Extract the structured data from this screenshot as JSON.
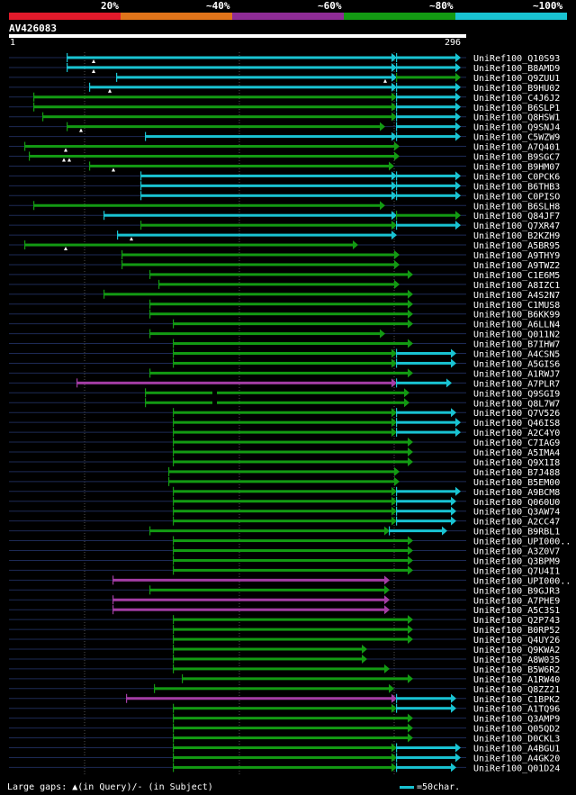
{
  "legend": {
    "colors": [
      "#e11a2b",
      "#e0741a",
      "#8e2c96",
      "#139a13",
      "#19c3d2"
    ],
    "labels": [
      "20%",
      "~40%",
      "~60%",
      "~80%",
      "~100%"
    ]
  },
  "query": {
    "id": "AV426083",
    "start": "1",
    "end": "296"
  },
  "footer": {
    "gaps_text": "Large gaps: ▲(in Query)/- (in Subject)",
    "scale_text": "=50char."
  },
  "hits": [
    {
      "name": "UniRef100_Q10S93",
      "segs": [
        [
          75,
          441,
          "c"
        ],
        [
          441,
          512,
          "c"
        ]
      ],
      "tri": [
        [
          104,
          "q"
        ]
      ]
    },
    {
      "name": "UniRef100_B8AMD9",
      "segs": [
        [
          75,
          441,
          "c"
        ],
        [
          441,
          512,
          "c"
        ]
      ],
      "tri": [
        [
          104,
          "q"
        ]
      ]
    },
    {
      "name": "UniRef100_Q9ZUU1",
      "segs": [
        [
          130,
          441,
          "c"
        ],
        [
          441,
          512,
          "g"
        ]
      ],
      "tri": [
        [
          428,
          "q"
        ]
      ]
    },
    {
      "name": "UniRef100_B9HU02",
      "segs": [
        [
          100,
          441,
          "c"
        ],
        [
          441,
          512,
          "c"
        ]
      ],
      "tri": [
        [
          122,
          "q"
        ]
      ]
    },
    {
      "name": "UniRef100_C4J6J2",
      "segs": [
        [
          38,
          441,
          "g"
        ],
        [
          441,
          512,
          "c"
        ]
      ],
      "tri": []
    },
    {
      "name": "UniRef100_B6SLP1",
      "segs": [
        [
          38,
          441,
          "g"
        ],
        [
          441,
          512,
          "c"
        ]
      ],
      "tri": []
    },
    {
      "name": "UniRef100_Q8HSW1",
      "segs": [
        [
          48,
          441,
          "g"
        ],
        [
          441,
          512,
          "c"
        ]
      ],
      "tri": []
    },
    {
      "name": "UniRef100_Q9SNJ4",
      "segs": [
        [
          75,
          428,
          "g"
        ],
        [
          441,
          512,
          "c"
        ]
      ],
      "tri": [
        [
          90,
          "q"
        ]
      ]
    },
    {
      "name": "UniRef100_C5WZW9",
      "segs": [
        [
          162,
          441,
          "c"
        ],
        [
          441,
          512,
          "c"
        ]
      ],
      "tri": []
    },
    {
      "name": "UniRef100_A7Q401",
      "segs": [
        [
          28,
          444,
          "g"
        ]
      ],
      "tri": [
        [
          73,
          "q"
        ]
      ]
    },
    {
      "name": "UniRef100_B9SGC7",
      "segs": [
        [
          33,
          444,
          "g"
        ]
      ],
      "tri": [
        [
          71,
          "q"
        ],
        [
          77,
          "q"
        ]
      ]
    },
    {
      "name": "UniRef100_B9HM07",
      "segs": [
        [
          100,
          438,
          "g"
        ]
      ],
      "tri": [
        [
          126,
          "q"
        ]
      ]
    },
    {
      "name": "UniRef100_C0PCK6",
      "segs": [
        [
          157,
          441,
          "c"
        ],
        [
          441,
          512,
          "c"
        ]
      ],
      "tri": []
    },
    {
      "name": "UniRef100_B6THB3",
      "segs": [
        [
          157,
          441,
          "c"
        ],
        [
          441,
          512,
          "c"
        ]
      ],
      "tri": []
    },
    {
      "name": "UniRef100_C0PISO",
      "segs": [
        [
          157,
          441,
          "c"
        ],
        [
          441,
          512,
          "c"
        ]
      ],
      "tri": []
    },
    {
      "name": "UniRef100_B6SLH8",
      "segs": [
        [
          38,
          428,
          "g"
        ]
      ],
      "tri": []
    },
    {
      "name": "UniRef100_Q84JF7",
      "segs": [
        [
          116,
          441,
          "c"
        ],
        [
          441,
          512,
          "g"
        ]
      ],
      "tri": []
    },
    {
      "name": "UniRef100_Q7XR47",
      "segs": [
        [
          157,
          441,
          "g"
        ],
        [
          441,
          512,
          "c"
        ]
      ],
      "tri": []
    },
    {
      "name": "UniRef100_B2KZH9",
      "segs": [
        [
          131,
          441,
          "c"
        ]
      ],
      "tri": [
        [
          146,
          "q"
        ]
      ]
    },
    {
      "name": "UniRef100_A5BR95",
      "segs": [
        [
          28,
          398,
          "g"
        ]
      ],
      "tri": [
        [
          73,
          "q"
        ]
      ]
    },
    {
      "name": "UniRef100_A9THY9",
      "segs": [
        [
          136,
          444,
          "g"
        ]
      ],
      "tri": []
    },
    {
      "name": "UniRef100_A9TWZ2",
      "segs": [
        [
          136,
          444,
          "g"
        ]
      ],
      "tri": []
    },
    {
      "name": "UniRef100_C1E6M5",
      "segs": [
        [
          167,
          459,
          "g"
        ]
      ],
      "tri": []
    },
    {
      "name": "UniRef100_A8IZC1",
      "segs": [
        [
          177,
          444,
          "g"
        ]
      ],
      "tri": []
    },
    {
      "name": "UniRef100_A4S2N7",
      "segs": [
        [
          116,
          459,
          "g"
        ]
      ],
      "tri": []
    },
    {
      "name": "UniRef100_C1MUS8",
      "segs": [
        [
          167,
          459,
          "g"
        ]
      ],
      "tri": []
    },
    {
      "name": "UniRef100_B6KK99",
      "segs": [
        [
          167,
          459,
          "g"
        ]
      ],
      "tri": []
    },
    {
      "name": "UniRef100_A6LLN4",
      "segs": [
        [
          193,
          459,
          "g"
        ]
      ],
      "tri": []
    },
    {
      "name": "UniRef100_Q011N2",
      "segs": [
        [
          167,
          428,
          "g"
        ]
      ],
      "tri": []
    },
    {
      "name": "UniRef100_B7IHW7",
      "segs": [
        [
          193,
          459,
          "g"
        ]
      ],
      "tri": []
    },
    {
      "name": "UniRef100_A4CSN5",
      "segs": [
        [
          193,
          441,
          "g"
        ],
        [
          441,
          507,
          "c"
        ]
      ],
      "tri": []
    },
    {
      "name": "UniRef100_A5GIS6",
      "segs": [
        [
          193,
          441,
          "g"
        ],
        [
          441,
          507,
          "c"
        ]
      ],
      "tri": []
    },
    {
      "name": "UniRef100_A1RWJ7",
      "segs": [
        [
          167,
          459,
          "g"
        ]
      ],
      "tri": []
    },
    {
      "name": "UniRef100_A7PLR7",
      "segs": [
        [
          86,
          441,
          "p"
        ],
        [
          441,
          502,
          "c"
        ]
      ],
      "tri": []
    },
    {
      "name": "UniRef100_Q9SGI9",
      "segs": [
        [
          162,
          455,
          "g"
        ]
      ],
      "tri": [],
      "gap": [
        236,
        241
      ]
    },
    {
      "name": "UniRef100_Q8L7W7",
      "segs": [
        [
          162,
          455,
          "g"
        ]
      ],
      "tri": [],
      "gap": [
        236,
        241
      ]
    },
    {
      "name": "UniRef100_Q7V526",
      "segs": [
        [
          193,
          441,
          "g"
        ],
        [
          441,
          507,
          "c"
        ]
      ],
      "tri": []
    },
    {
      "name": "UniRef100_Q46IS8",
      "segs": [
        [
          193,
          441,
          "g"
        ],
        [
          441,
          512,
          "c"
        ]
      ],
      "tri": []
    },
    {
      "name": "UniRef100_A2C4Y0",
      "segs": [
        [
          193,
          441,
          "g"
        ],
        [
          441,
          512,
          "c"
        ]
      ],
      "tri": []
    },
    {
      "name": "UniRef100_C7IAG9",
      "segs": [
        [
          193,
          459,
          "g"
        ]
      ],
      "tri": []
    },
    {
      "name": "UniRef100_A5IMA4",
      "segs": [
        [
          193,
          459,
          "g"
        ]
      ],
      "tri": []
    },
    {
      "name": "UniRef100_Q9X1I8",
      "segs": [
        [
          193,
          459,
          "g"
        ]
      ],
      "tri": []
    },
    {
      "name": "UniRef100_B7J488",
      "segs": [
        [
          188,
          444,
          "g"
        ]
      ],
      "tri": []
    },
    {
      "name": "UniRef100_B5EM00",
      "segs": [
        [
          188,
          444,
          "g"
        ]
      ],
      "tri": []
    },
    {
      "name": "UniRef100_A9BCM8",
      "segs": [
        [
          193,
          441,
          "g"
        ],
        [
          441,
          512,
          "c"
        ]
      ],
      "tri": []
    },
    {
      "name": "UniRef100_Q060U0",
      "segs": [
        [
          193,
          441,
          "g"
        ],
        [
          441,
          507,
          "c"
        ]
      ],
      "tri": []
    },
    {
      "name": "UniRef100_Q3AW74",
      "segs": [
        [
          193,
          441,
          "g"
        ],
        [
          441,
          507,
          "c"
        ]
      ],
      "tri": []
    },
    {
      "name": "UniRef100_A2CC47",
      "segs": [
        [
          193,
          441,
          "g"
        ],
        [
          441,
          507,
          "c"
        ]
      ],
      "tri": []
    },
    {
      "name": "UniRef100_B9RBL1",
      "segs": [
        [
          167,
          433,
          "g"
        ],
        [
          433,
          497,
          "c"
        ]
      ],
      "tri": []
    },
    {
      "name": "UniRef100_UPI000..",
      "segs": [
        [
          193,
          459,
          "g"
        ]
      ],
      "tri": []
    },
    {
      "name": "UniRef100_A3Z0V7",
      "segs": [
        [
          193,
          459,
          "g"
        ]
      ],
      "tri": []
    },
    {
      "name": "UniRef100_Q3BPM9",
      "segs": [
        [
          193,
          459,
          "g"
        ]
      ],
      "tri": []
    },
    {
      "name": "UniRef100_Q7U4I1",
      "segs": [
        [
          193,
          459,
          "g"
        ]
      ],
      "tri": []
    },
    {
      "name": "UniRef100_UPI000..",
      "segs": [
        [
          126,
          433,
          "p"
        ]
      ],
      "tri": []
    },
    {
      "name": "UniRef100_B9GJR3",
      "segs": [
        [
          167,
          433,
          "g"
        ]
      ],
      "tri": []
    },
    {
      "name": "UniRef100_A7PHE9",
      "segs": [
        [
          126,
          433,
          "p"
        ]
      ],
      "tri": []
    },
    {
      "name": "UniRef100_A5C3S1",
      "segs": [
        [
          126,
          433,
          "p"
        ]
      ],
      "tri": []
    },
    {
      "name": "UniRef100_Q2P743",
      "segs": [
        [
          193,
          459,
          "g"
        ]
      ],
      "tri": []
    },
    {
      "name": "UniRef100_B0RP52",
      "segs": [
        [
          193,
          459,
          "g"
        ]
      ],
      "tri": []
    },
    {
      "name": "UniRef100_Q4UY26",
      "segs": [
        [
          193,
          459,
          "g"
        ]
      ],
      "tri": []
    },
    {
      "name": "UniRef100_Q9KWA2",
      "segs": [
        [
          193,
          408,
          "g"
        ]
      ],
      "tri": []
    },
    {
      "name": "UniRef100_A8W035",
      "segs": [
        [
          193,
          408,
          "g"
        ]
      ],
      "tri": []
    },
    {
      "name": "UniRef100_B5W6R2",
      "segs": [
        [
          193,
          433,
          "g"
        ]
      ],
      "tri": []
    },
    {
      "name": "UniRef100_A1RW40",
      "segs": [
        [
          203,
          459,
          "g"
        ]
      ],
      "tri": []
    },
    {
      "name": "UniRef100_Q8ZZ21",
      "segs": [
        [
          172,
          438,
          "g"
        ]
      ],
      "tri": []
    },
    {
      "name": "UniRef100_C1BPK2",
      "segs": [
        [
          141,
          441,
          "p"
        ],
        [
          441,
          507,
          "c"
        ]
      ],
      "tri": []
    },
    {
      "name": "UniRef100_A1TQ96",
      "segs": [
        [
          193,
          441,
          "g"
        ],
        [
          441,
          507,
          "c"
        ]
      ],
      "tri": []
    },
    {
      "name": "UniRef100_Q3AMP9",
      "segs": [
        [
          193,
          459,
          "g"
        ]
      ],
      "tri": []
    },
    {
      "name": "UniRef100_Q05QD2",
      "segs": [
        [
          193,
          459,
          "g"
        ]
      ],
      "tri": []
    },
    {
      "name": "UniRef100_D0CKL3",
      "segs": [
        [
          193,
          459,
          "g"
        ]
      ],
      "tri": []
    },
    {
      "name": "UniRef100_A4BGU1",
      "segs": [
        [
          193,
          441,
          "g"
        ],
        [
          441,
          512,
          "c"
        ]
      ],
      "tri": []
    },
    {
      "name": "UniRef100_A4GK20",
      "segs": [
        [
          193,
          441,
          "g"
        ],
        [
          441,
          512,
          "c"
        ]
      ],
      "tri": []
    },
    {
      "name": "UniRef100_Q01D24",
      "segs": [
        [
          193,
          441,
          "g"
        ],
        [
          441,
          507,
          "c"
        ]
      ],
      "tri": []
    }
  ]
}
